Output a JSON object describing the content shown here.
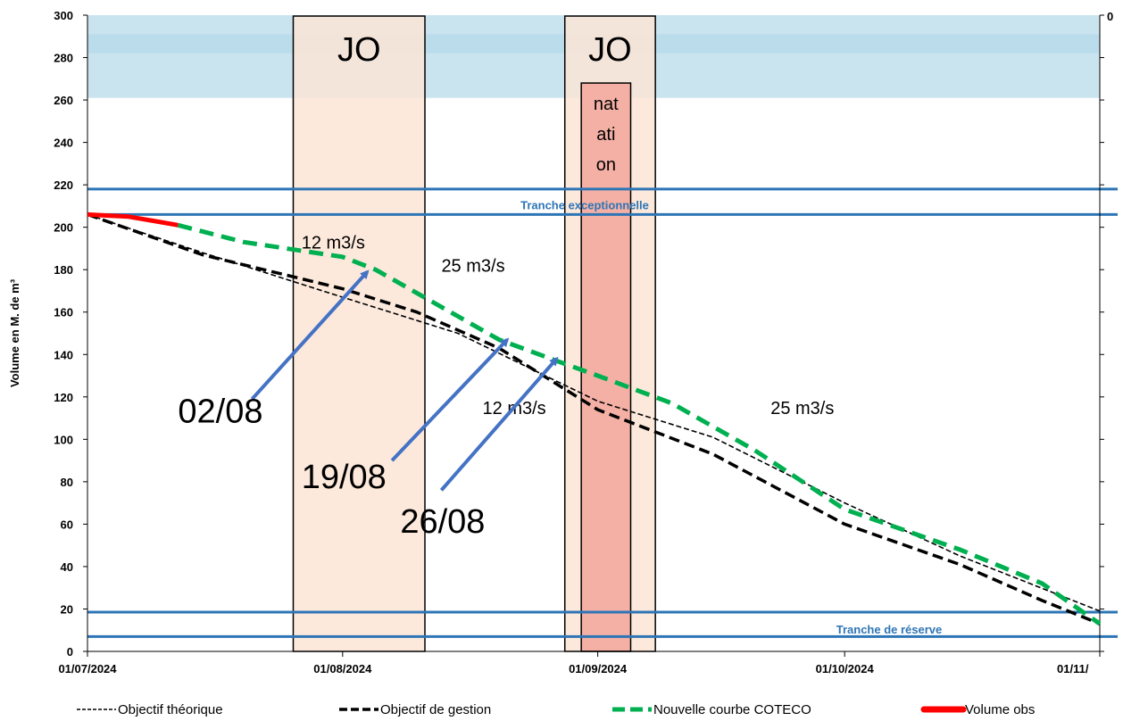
{
  "chart_data": {
    "type": "line",
    "ylabel": "Volume en M. de m³",
    "ylim": [
      0,
      300
    ],
    "y_ticks": [
      "0",
      "20",
      "40",
      "60",
      "80",
      "100",
      "120",
      "140",
      "160",
      "180",
      "200",
      "220",
      "240",
      "260",
      "280",
      "300"
    ],
    "x_ticks": [
      "01/07/2024",
      "01/08/2024",
      "01/09/2024",
      "01/10/2024",
      "01/11/"
    ],
    "secondary_axis_label": "0",
    "x_start": "2024-07-01",
    "x_end": "2024-11-01",
    "grid": false,
    "legend_position": "bottom",
    "series": [
      {
        "name": "Objectif théorique",
        "style": "dashed-thin",
        "color": "#000000",
        "points": [
          [
            "2024-07-01",
            206
          ],
          [
            "2024-07-15",
            188
          ],
          [
            "2024-08-01",
            167
          ],
          [
            "2024-08-15",
            150
          ],
          [
            "2024-09-01",
            118
          ],
          [
            "2024-09-15",
            101
          ],
          [
            "2024-10-01",
            70
          ],
          [
            "2024-10-15",
            45
          ],
          [
            "2024-11-01",
            19
          ]
        ]
      },
      {
        "name": "Objectif de gestion",
        "style": "dashed-bold",
        "color": "#000000",
        "points": [
          [
            "2024-07-01",
            206
          ],
          [
            "2024-07-15",
            187
          ],
          [
            "2024-08-01",
            171
          ],
          [
            "2024-08-10",
            160
          ],
          [
            "2024-08-20",
            143
          ],
          [
            "2024-09-01",
            114
          ],
          [
            "2024-09-15",
            93
          ],
          [
            "2024-10-01",
            60
          ],
          [
            "2024-10-15",
            41
          ],
          [
            "2024-10-25",
            24
          ],
          [
            "2024-11-01",
            13
          ]
        ]
      },
      {
        "name": "Nouvelle courbe COTECO",
        "style": "dashed-bold",
        "color": "#00b050",
        "points": [
          [
            "2024-07-12",
            201
          ],
          [
            "2024-07-20",
            193
          ],
          [
            "2024-08-01",
            186
          ],
          [
            "2024-08-05",
            180
          ],
          [
            "2024-08-10",
            169
          ],
          [
            "2024-08-20",
            147
          ],
          [
            "2024-08-27",
            137
          ],
          [
            "2024-09-01",
            130
          ],
          [
            "2024-09-10",
            117
          ],
          [
            "2024-09-20",
            95
          ],
          [
            "2024-10-01",
            67
          ],
          [
            "2024-10-15",
            48
          ],
          [
            "2024-10-25",
            32
          ],
          [
            "2024-11-01",
            13
          ]
        ]
      },
      {
        "name": "Volume obs",
        "style": "solid",
        "color": "#ff0000",
        "points": [
          [
            "2024-07-01",
            206
          ],
          [
            "2024-07-06",
            205
          ],
          [
            "2024-07-09",
            203
          ],
          [
            "2024-07-12",
            201
          ]
        ]
      }
    ],
    "reference_lines": [
      {
        "name": "Tranche exceptionnelle",
        "values": [
          218,
          206
        ],
        "color": "#2e75b6"
      },
      {
        "name": "Tranche de réserve",
        "values": [
          18.5,
          7
        ],
        "color": "#2e75b6"
      }
    ],
    "shaded_bands": [
      {
        "from": 261,
        "to": 300,
        "color": "#c9e4ef"
      }
    ],
    "periods": [
      {
        "label": "JO",
        "from": "2024-07-26",
        "to": "2024-08-11",
        "color": "#fbe5d6"
      },
      {
        "label": "JO",
        "from": "2024-08-28",
        "to": "2024-09-08",
        "color": "#fbe5d6"
      },
      {
        "label": "nat\nati\non",
        "from": "2024-08-30",
        "to": "2024-09-05",
        "top": 268,
        "color": "#f4b0a5"
      }
    ],
    "annotations": [
      {
        "text": "12 m3/s",
        "x": "2024-07-27",
        "y": 190,
        "type": "rate"
      },
      {
        "text": "25 m3/s",
        "x": "2024-08-13",
        "y": 179,
        "type": "rate"
      },
      {
        "text": "12 m3/s",
        "x": "2024-08-18",
        "y": 112,
        "type": "rate"
      },
      {
        "text": "25 m3/s",
        "x": "2024-09-22",
        "y": 112,
        "type": "rate"
      },
      {
        "text": "02/08",
        "x": "2024-07-12",
        "y": 108,
        "type": "date",
        "arrow_from": [
          "2024-07-21",
          119
        ],
        "arrow_to": [
          "2024-08-04",
          179
        ]
      },
      {
        "text": "19/08",
        "x": "2024-07-27",
        "y": 77,
        "type": "date",
        "arrow_from": [
          "2024-08-07",
          90
        ],
        "arrow_to": [
          "2024-08-21",
          147
        ]
      },
      {
        "text": "26/08",
        "x": "2024-08-08",
        "y": 56,
        "type": "date",
        "arrow_from": [
          "2024-08-13",
          76
        ],
        "arrow_to": [
          "2024-08-27",
          138
        ]
      }
    ]
  }
}
